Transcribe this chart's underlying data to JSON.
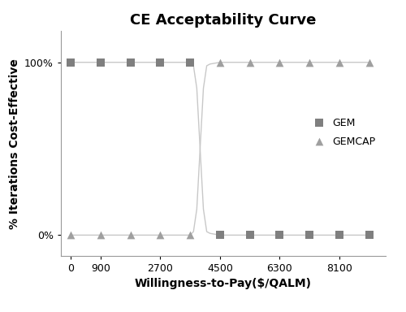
{
  "title": "CE Acceptability Curve",
  "xlabel": "Willingness-to-Pay($/QALM)",
  "ylabel": "% Iterations Cost-Effective",
  "xticks": [
    0,
    900,
    2700,
    4500,
    6300,
    8100
  ],
  "ytick_vals": [
    0,
    1
  ],
  "ytick_labels": [
    "0%",
    "100%"
  ],
  "gem_line_x": [
    0,
    900,
    1800,
    2700,
    3600,
    3700,
    3800,
    3900,
    4000,
    4100,
    4200,
    4500,
    5400,
    6300,
    7200,
    8100,
    9000
  ],
  "gem_line_y": [
    1.0,
    1.0,
    1.0,
    1.0,
    1.0,
    0.98,
    0.85,
    0.5,
    0.15,
    0.02,
    0.01,
    0.0,
    0.0,
    0.0,
    0.0,
    0.0,
    0.0
  ],
  "gemcap_line_x": [
    0,
    900,
    1800,
    2700,
    3600,
    3700,
    3800,
    3900,
    4000,
    4100,
    4200,
    4500,
    5400,
    6300,
    7200,
    8100,
    9000
  ],
  "gemcap_line_y": [
    0.0,
    0.0,
    0.0,
    0.0,
    0.0,
    0.02,
    0.15,
    0.5,
    0.85,
    0.98,
    0.99,
    1.0,
    1.0,
    1.0,
    1.0,
    1.0,
    1.0
  ],
  "gem_marker_x": [
    0,
    900,
    1800,
    2700,
    3600,
    4500,
    5400,
    6300,
    7200,
    8100,
    9000
  ],
  "gem_marker_y": [
    1.0,
    1.0,
    1.0,
    1.0,
    1.0,
    0.0,
    0.0,
    0.0,
    0.0,
    0.0,
    0.0
  ],
  "gemcap_marker_x": [
    0,
    900,
    1800,
    2700,
    3600,
    4500,
    5400,
    6300,
    7200,
    8100,
    9000
  ],
  "gemcap_marker_y": [
    0.0,
    0.0,
    0.0,
    0.0,
    0.0,
    1.0,
    1.0,
    1.0,
    1.0,
    1.0,
    1.0
  ],
  "gem_color": "#7f7f7f",
  "gemcap_color": "#9f9f9f",
  "line_color": "#c8c8c8",
  "background_color": "#ffffff",
  "title_fontsize": 13,
  "label_fontsize": 10,
  "tick_fontsize": 9,
  "legend_fontsize": 9,
  "xlim": [
    -300,
    9500
  ],
  "ylim": [
    -0.12,
    1.18
  ],
  "marker_size": 7,
  "linewidth": 1.0,
  "figsize": [
    5.0,
    3.84
  ],
  "dpi": 100
}
